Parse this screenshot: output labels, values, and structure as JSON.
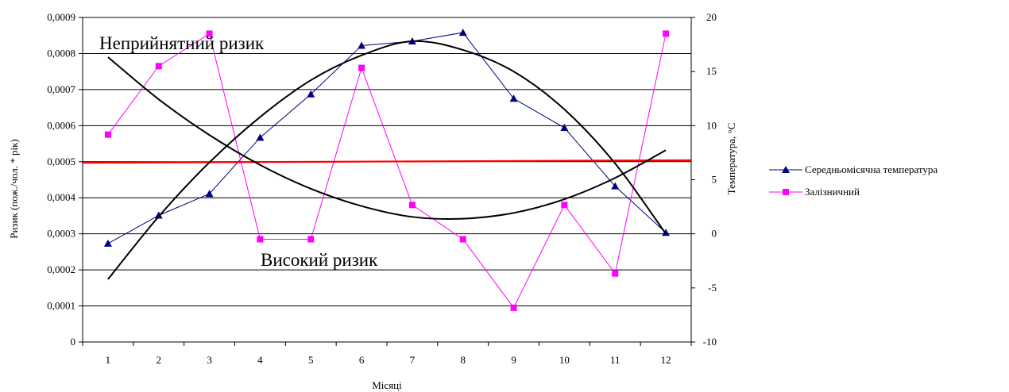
{
  "chart_data": {
    "type": "line",
    "categories": [
      "1",
      "2",
      "3",
      "4",
      "5",
      "6",
      "7",
      "8",
      "9",
      "10",
      "11",
      "12"
    ],
    "xlabel": "Місяці",
    "ylabel_left": "Ризик (пож./чол. * рік)",
    "ylabel_right": "Температура, °С",
    "y_left_ticks": [
      "0",
      "0,0001",
      "0,0002",
      "0,0003",
      "0,0004",
      "0,0005",
      "0,0006",
      "0,0007",
      "0,0008",
      "0,0009"
    ],
    "y_left_range": [
      0,
      0.0009
    ],
    "y_right_ticks": [
      "-10",
      "-5",
      "0",
      "5",
      "10",
      "15",
      "20"
    ],
    "y_right_range": [
      -10,
      20
    ],
    "grid": "horizontal",
    "legend_position": "right",
    "annotations": {
      "unacceptable_risk": "Неприйнятний ризик",
      "high_risk": "Високий ризик"
    },
    "series": [
      {
        "name": "Середньомісячна температура",
        "axis": "right",
        "color": "#000080",
        "marker": "triangle",
        "values": [
          -0.9,
          1.7,
          3.7,
          8.9,
          12.9,
          17.4,
          17.8,
          18.6,
          12.5,
          9.8,
          4.4,
          0.1
        ]
      },
      {
        "name": "Залізничний",
        "axis": "left",
        "color": "#ff00ff",
        "marker": "square",
        "values": [
          0.000575,
          0.000765,
          0.000855,
          0.000285,
          0.000285,
          0.00076,
          0.00038,
          0.000285,
          9.5e-05,
          0.00038,
          0.00019,
          0.000855
        ]
      },
      {
        "axis": "left",
        "role": "risk-threshold",
        "color": "#ff0000",
        "values": [
          0.000497,
          0.000498,
          0.000499,
          0.0005,
          0.0005,
          0.000501,
          0.000501,
          0.000502,
          0.000502,
          0.000503,
          0.000503,
          0.000504
        ]
      },
      {
        "axis": "left",
        "role": "trend-railway",
        "color": "#000000",
        "values": [
          0.00079,
          0.000673,
          0.000574,
          0.000491,
          0.000425,
          0.000377,
          0.000347,
          0.000342,
          0.000358,
          0.000396,
          0.000455,
          0.000532
        ]
      },
      {
        "axis": "right",
        "role": "trend-temperature",
        "color": "#000000",
        "values": [
          -4.2,
          1.6,
          6.6,
          10.8,
          14.2,
          16.5,
          17.8,
          17.0,
          15.0,
          11.5,
          6.5,
          0.0
        ]
      }
    ]
  }
}
